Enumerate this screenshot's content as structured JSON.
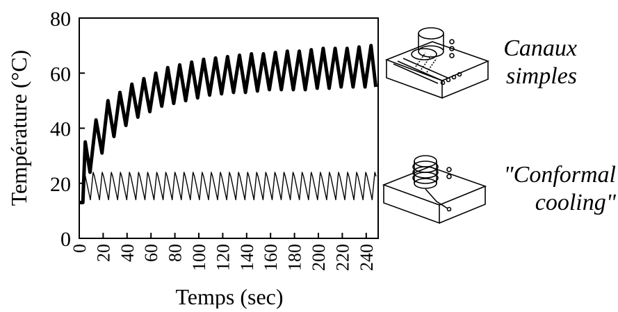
{
  "chart_data": {
    "type": "line",
    "xlabel": "Temps (sec)",
    "ylabel": "Température (°C)",
    "xlim": [
      0,
      250
    ],
    "ylim": [
      0,
      80
    ],
    "xticks": [
      0,
      20,
      40,
      60,
      80,
      100,
      120,
      140,
      160,
      180,
      200,
      220,
      240
    ],
    "yticks": [
      0,
      20,
      40,
      60,
      80
    ],
    "grid": false,
    "series": [
      {
        "name": "Canaux simples",
        "cycle_period_sec": 9.7,
        "start_time_sec": 0,
        "initial_temperature": 13,
        "peak_envelope": [
          [
            5,
            35
          ],
          [
            14,
            43
          ],
          [
            24,
            50
          ],
          [
            34,
            53
          ],
          [
            44,
            56
          ],
          [
            54,
            58
          ],
          [
            64,
            60
          ],
          [
            74,
            62
          ],
          [
            84,
            63
          ],
          [
            94,
            64
          ],
          [
            104,
            65
          ],
          [
            114,
            65.5
          ],
          [
            124,
            66
          ],
          [
            134,
            66.5
          ],
          [
            144,
            67
          ],
          [
            154,
            67
          ],
          [
            164,
            67.5
          ],
          [
            174,
            68
          ],
          [
            184,
            68
          ],
          [
            194,
            68.5
          ],
          [
            204,
            69
          ],
          [
            214,
            69
          ],
          [
            224,
            69
          ],
          [
            234,
            69.5
          ],
          [
            244,
            70
          ]
        ],
        "trough_envelope": [
          [
            9,
            24
          ],
          [
            19,
            31
          ],
          [
            29,
            37
          ],
          [
            39,
            41
          ],
          [
            49,
            44
          ],
          [
            59,
            46
          ],
          [
            69,
            48
          ],
          [
            79,
            49
          ],
          [
            89,
            50
          ],
          [
            99,
            51
          ],
          [
            109,
            52
          ],
          [
            119,
            52.5
          ],
          [
            129,
            53
          ],
          [
            139,
            53
          ],
          [
            149,
            53.5
          ],
          [
            159,
            54
          ],
          [
            169,
            54
          ],
          [
            179,
            54
          ],
          [
            189,
            54
          ],
          [
            199,
            54.5
          ],
          [
            209,
            54.5
          ],
          [
            219,
            55
          ],
          [
            229,
            55
          ],
          [
            239,
            55
          ],
          [
            248,
            55
          ]
        ],
        "line_style": "thick"
      },
      {
        "name": "\"Conformal cooling\"",
        "cycle_period_sec": 7.6,
        "start_time_sec": 0,
        "initial_temperature": 13,
        "peak_temperature": 24,
        "trough_temperature": 14,
        "line_style": "thin"
      }
    ],
    "annotations": [
      {
        "text_lines": [
          "Canaux",
          "simples"
        ],
        "series": "Canaux simples",
        "icon": "mold-with-straight-channels-icon"
      },
      {
        "text_lines": [
          "\"Conformal",
          "cooling\""
        ],
        "series": "\"Conformal cooling\"",
        "icon": "mold-with-conformal-coil-icon"
      }
    ]
  }
}
